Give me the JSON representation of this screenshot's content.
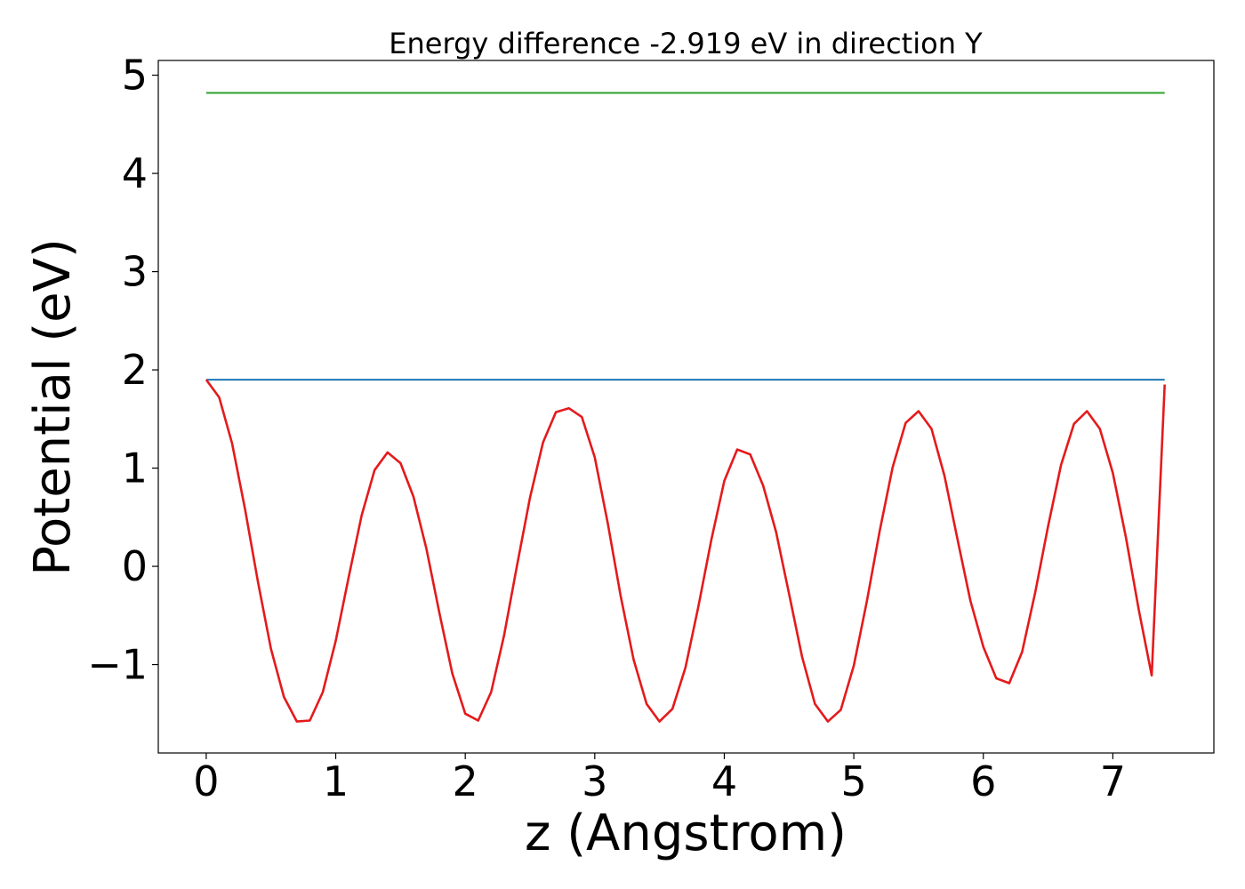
{
  "chart_data": {
    "type": "line",
    "title": "Energy difference -2.919 eV in direction Y",
    "xlabel": "z (Angstrom)",
    "ylabel": "Potential (eV)",
    "xlim": [
      -0.37,
      7.78
    ],
    "ylim": [
      -1.9,
      5.15
    ],
    "x_ticks": [
      0,
      1,
      2,
      3,
      4,
      5,
      6,
      7
    ],
    "x_tick_labels": [
      "0",
      "1",
      "2",
      "3",
      "4",
      "5",
      "6",
      "7"
    ],
    "y_ticks": [
      -1,
      0,
      1,
      2,
      3,
      4,
      5
    ],
    "y_tick_labels": [
      "−1",
      "0",
      "1",
      "2",
      "3",
      "4",
      "5"
    ],
    "grid": false,
    "series": [
      {
        "kind": "hline",
        "color": "#2ca02c",
        "x": [
          0,
          7.4
        ],
        "y": [
          4.82,
          4.82
        ]
      },
      {
        "kind": "hline",
        "color": "#1f77b4",
        "x": [
          0,
          7.4
        ],
        "y": [
          1.9,
          1.9
        ]
      },
      {
        "kind": "curve",
        "color": "#e41a1c",
        "x": [
          0.0,
          0.1,
          0.2,
          0.3,
          0.4,
          0.5,
          0.6,
          0.7,
          0.8,
          0.9,
          1.0,
          1.1,
          1.2,
          1.3,
          1.4,
          1.5,
          1.6,
          1.7,
          1.8,
          1.9,
          2.0,
          2.1,
          2.2,
          2.3,
          2.4,
          2.5,
          2.6,
          2.7,
          2.8,
          2.9,
          3.0,
          3.1,
          3.2,
          3.3,
          3.4,
          3.5,
          3.6,
          3.7,
          3.8,
          3.9,
          4.0,
          4.1,
          4.2,
          4.3,
          4.4,
          4.5,
          4.6,
          4.7,
          4.8,
          4.9,
          5.0,
          5.1,
          5.2,
          5.3,
          5.4,
          5.5,
          5.6,
          5.7,
          5.8,
          5.9,
          6.0,
          6.1,
          6.2,
          6.3,
          6.4,
          6.5,
          6.6,
          6.7,
          6.8,
          6.9,
          7.0,
          7.1,
          7.2,
          7.3,
          7.4
        ],
        "y": [
          1.9,
          1.72,
          1.25,
          0.58,
          -0.16,
          -0.84,
          -1.33,
          -1.58,
          -1.57,
          -1.28,
          -0.76,
          -0.11,
          0.52,
          0.98,
          1.16,
          1.05,
          0.71,
          0.18,
          -0.47,
          -1.09,
          -1.5,
          -1.57,
          -1.28,
          -0.7,
          0.01,
          0.7,
          1.26,
          1.57,
          1.61,
          1.52,
          1.11,
          0.44,
          -0.3,
          -0.95,
          -1.4,
          -1.58,
          -1.45,
          -1.03,
          -0.41,
          0.27,
          0.87,
          1.19,
          1.14,
          0.82,
          0.35,
          -0.28,
          -0.92,
          -1.4,
          -1.58,
          -1.46,
          -1.01,
          -0.36,
          0.36,
          1.01,
          1.46,
          1.58,
          1.4,
          0.92,
          0.28,
          -0.35,
          -0.82,
          -1.14,
          -1.19,
          -0.87,
          -0.27,
          0.41,
          1.03,
          1.45,
          1.58,
          1.4,
          0.95,
          0.3,
          -0.44,
          -1.11,
          1.85
        ]
      }
    ]
  }
}
